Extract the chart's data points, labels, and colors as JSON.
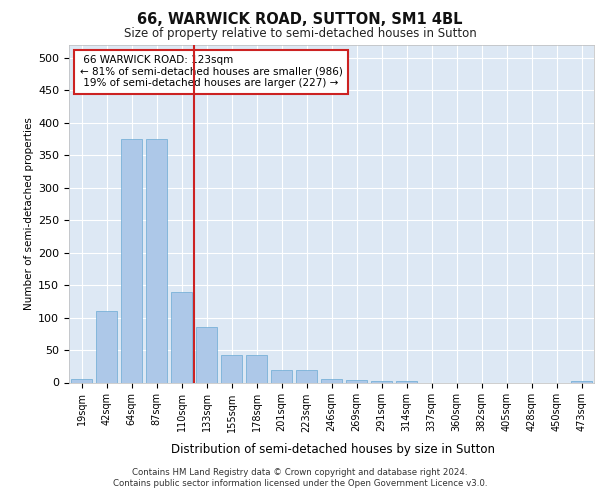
{
  "title": "66, WARWICK ROAD, SUTTON, SM1 4BL",
  "subtitle": "Size of property relative to semi-detached houses in Sutton",
  "xlabel": "Distribution of semi-detached houses by size in Sutton",
  "ylabel": "Number of semi-detached properties",
  "property_label": "66 WARWICK ROAD: 123sqm",
  "smaller_pct": 81,
  "smaller_count": 986,
  "larger_pct": 19,
  "larger_count": 227,
  "bar_color": "#adc8e8",
  "bar_edge_color": "#6aaad4",
  "highlight_color": "#cc2222",
  "background_color": "#dde8f4",
  "grid_color": "#ffffff",
  "categories": [
    "19sqm",
    "42sqm",
    "64sqm",
    "87sqm",
    "110sqm",
    "133sqm",
    "155sqm",
    "178sqm",
    "201sqm",
    "223sqm",
    "246sqm",
    "269sqm",
    "291sqm",
    "314sqm",
    "337sqm",
    "360sqm",
    "382sqm",
    "405sqm",
    "428sqm",
    "450sqm",
    "473sqm"
  ],
  "values": [
    5,
    110,
    375,
    375,
    140,
    85,
    42,
    42,
    20,
    20,
    5,
    4,
    2,
    2,
    0,
    0,
    0,
    0,
    0,
    0,
    2
  ],
  "redline_x": 4.5,
  "ylim": [
    0,
    520
  ],
  "yticks": [
    0,
    50,
    100,
    150,
    200,
    250,
    300,
    350,
    400,
    450,
    500
  ],
  "footnote1": "Contains HM Land Registry data © Crown copyright and database right 2024.",
  "footnote2": "Contains public sector information licensed under the Open Government Licence v3.0."
}
